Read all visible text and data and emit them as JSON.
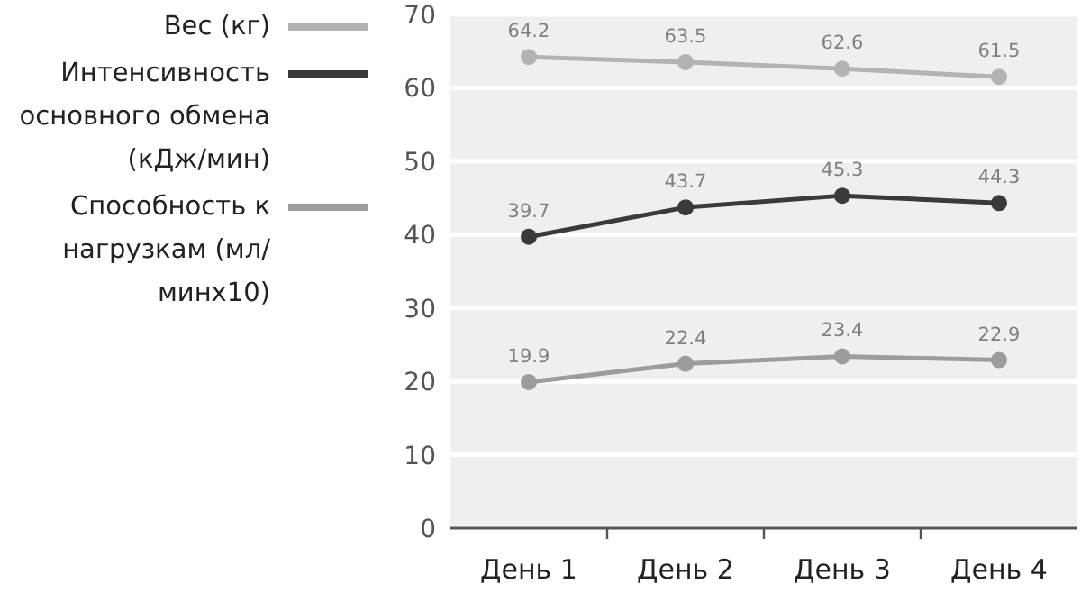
{
  "chart_data": {
    "type": "line",
    "categories": [
      "День 1",
      "День 2",
      "День 3",
      "День 4"
    ],
    "series": [
      {
        "name": "Вес (кг)",
        "color": "#b3b3b3",
        "values": [
          64.2,
          63.5,
          62.6,
          61.5
        ]
      },
      {
        "name": "Интенсивность основного обмена (кДж/мин)",
        "color": "#3a3a3a",
        "values": [
          39.7,
          43.7,
          45.3,
          44.3
        ]
      },
      {
        "name": "Способность к нагрузкам (мл/минх10)",
        "color": "#9c9c9c",
        "values": [
          19.9,
          22.4,
          23.4,
          22.9
        ]
      }
    ],
    "ylim": [
      0,
      70
    ],
    "yticks": [
      0,
      10,
      20,
      30,
      40,
      50,
      60,
      70
    ],
    "grid": "y",
    "legend": "left",
    "marker": "circle",
    "data_labels": true
  }
}
